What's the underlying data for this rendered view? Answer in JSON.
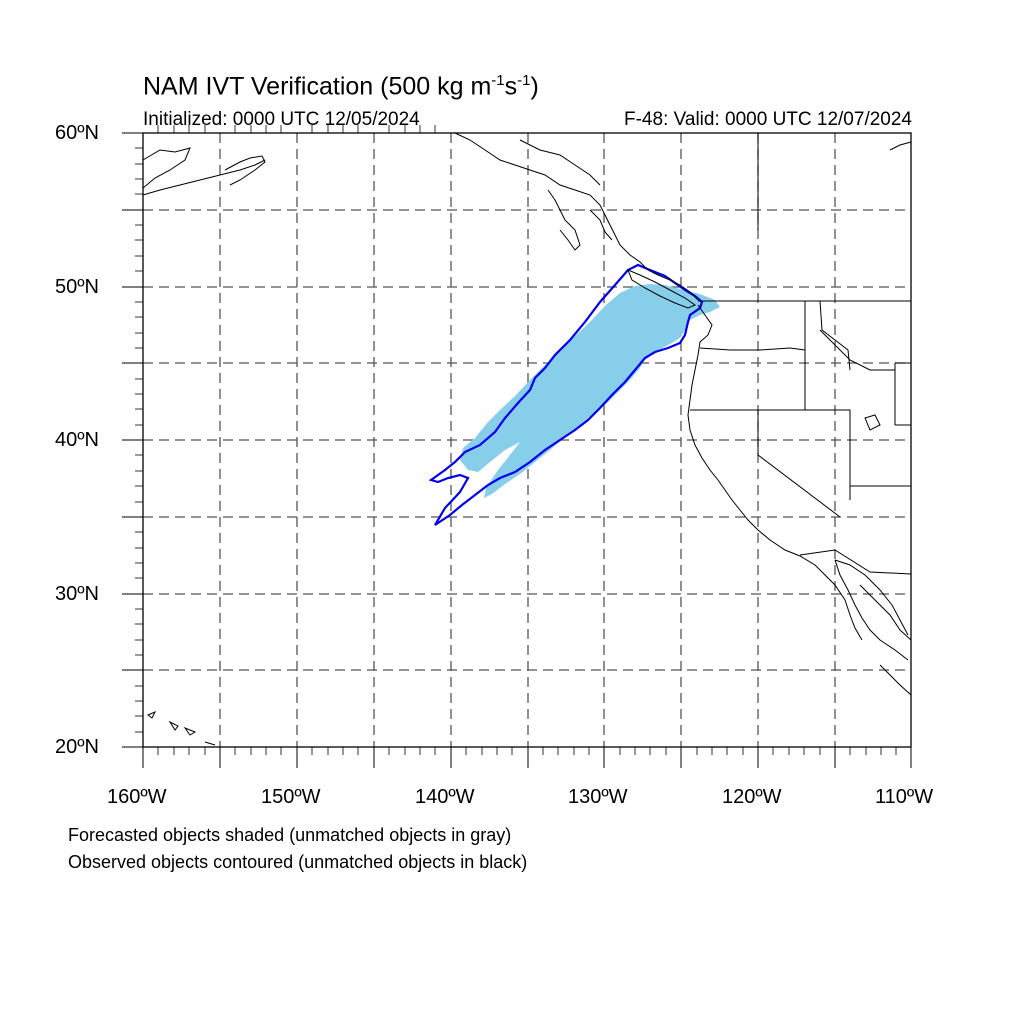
{
  "title": {
    "main": "NAM IVT Verification (500 kg m",
    "exp1": "-1",
    "mid": "s",
    "exp2": "-1",
    "end": ")"
  },
  "initialized": "Initialized: 0000 UTC 12/05/2024",
  "valid": "F-48: Valid: 0000 UTC 12/07/2024",
  "lat_labels": [
    "60ºN",
    "50ºN",
    "40ºN",
    "30ºN",
    "20ºN"
  ],
  "lon_labels": [
    "160ºW",
    "150ºW",
    "140ºW",
    "130ºW",
    "120ºW",
    "110ºW"
  ],
  "notes": {
    "line1": "Forecasted objects shaded (unmatched objects in gray)",
    "line2": "Observed objects contoured (unmatched objects in black)"
  },
  "colors": {
    "forecast_fill": "#87ceeb",
    "observed_contour": "#0000ee",
    "coastline": "#000000",
    "grid": "#555555"
  }
}
